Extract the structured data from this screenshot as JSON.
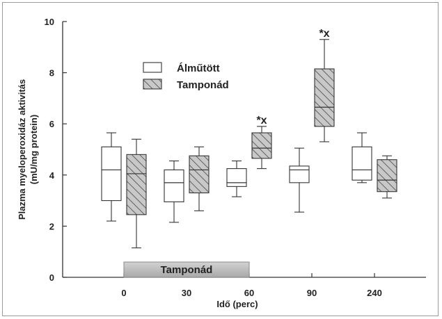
{
  "chart_data": {
    "type": "box",
    "xlabel": "Idő (perc)",
    "ylabel_line1": "Plazma myeloperoxidáz aktivitás",
    "ylabel_line2": "(mU/mg protein)",
    "ylim": [
      0,
      10
    ],
    "yticks": [
      "0",
      "2",
      "4",
      "6",
      "8",
      "10"
    ],
    "categories": [
      "0",
      "30",
      "60",
      "90",
      "240"
    ],
    "legend": {
      "position": "top-left",
      "items": [
        {
          "label": "Álműtött",
          "style": "open"
        },
        {
          "label": "Tamponád",
          "style": "hatched"
        }
      ]
    },
    "series": [
      {
        "name": "Álműtött",
        "style": "open",
        "boxes": [
          {
            "min": 2.2,
            "q1": 3.0,
            "median": 4.2,
            "q3": 5.1,
            "max": 5.65
          },
          {
            "min": 2.15,
            "q1": 2.95,
            "median": 3.7,
            "q3": 4.2,
            "max": 4.55
          },
          {
            "min": 3.15,
            "q1": 3.55,
            "median": 3.7,
            "q3": 4.25,
            "max": 4.55
          },
          {
            "min": 2.55,
            "q1": 3.7,
            "median": 4.2,
            "q3": 4.35,
            "max": 5.05
          },
          {
            "min": 3.7,
            "q1": 3.8,
            "median": 4.2,
            "q3": 5.1,
            "max": 5.65
          }
        ]
      },
      {
        "name": "Tamponád",
        "style": "hatched",
        "boxes": [
          {
            "min": 1.15,
            "q1": 2.45,
            "median": 4.05,
            "q3": 4.8,
            "max": 5.4
          },
          {
            "min": 2.6,
            "q1": 3.3,
            "median": 4.2,
            "q3": 4.75,
            "max": 5.1
          },
          {
            "min": 4.25,
            "q1": 4.65,
            "median": 5.05,
            "q3": 5.65,
            "max": 5.9
          },
          {
            "min": 5.3,
            "q1": 5.9,
            "median": 6.65,
            "q3": 8.15,
            "max": 9.3
          },
          {
            "min": 3.1,
            "q1": 3.35,
            "median": 3.8,
            "q3": 4.6,
            "max": 4.75
          }
        ]
      }
    ],
    "annotations": [
      {
        "text": "*x",
        "category": "60",
        "series": "Tamponád"
      },
      {
        "text": "*x",
        "category": "90",
        "series": "Tamponád"
      }
    ],
    "period_bar": {
      "label": "Tamponád",
      "from": "0",
      "to": "60"
    }
  },
  "colors": {
    "box_fill": "#ffffff",
    "hatch_fill": "#c8c8c8",
    "hatch_line": "#555555",
    "period_fill": "#b4b4b4",
    "line": "#333333"
  }
}
